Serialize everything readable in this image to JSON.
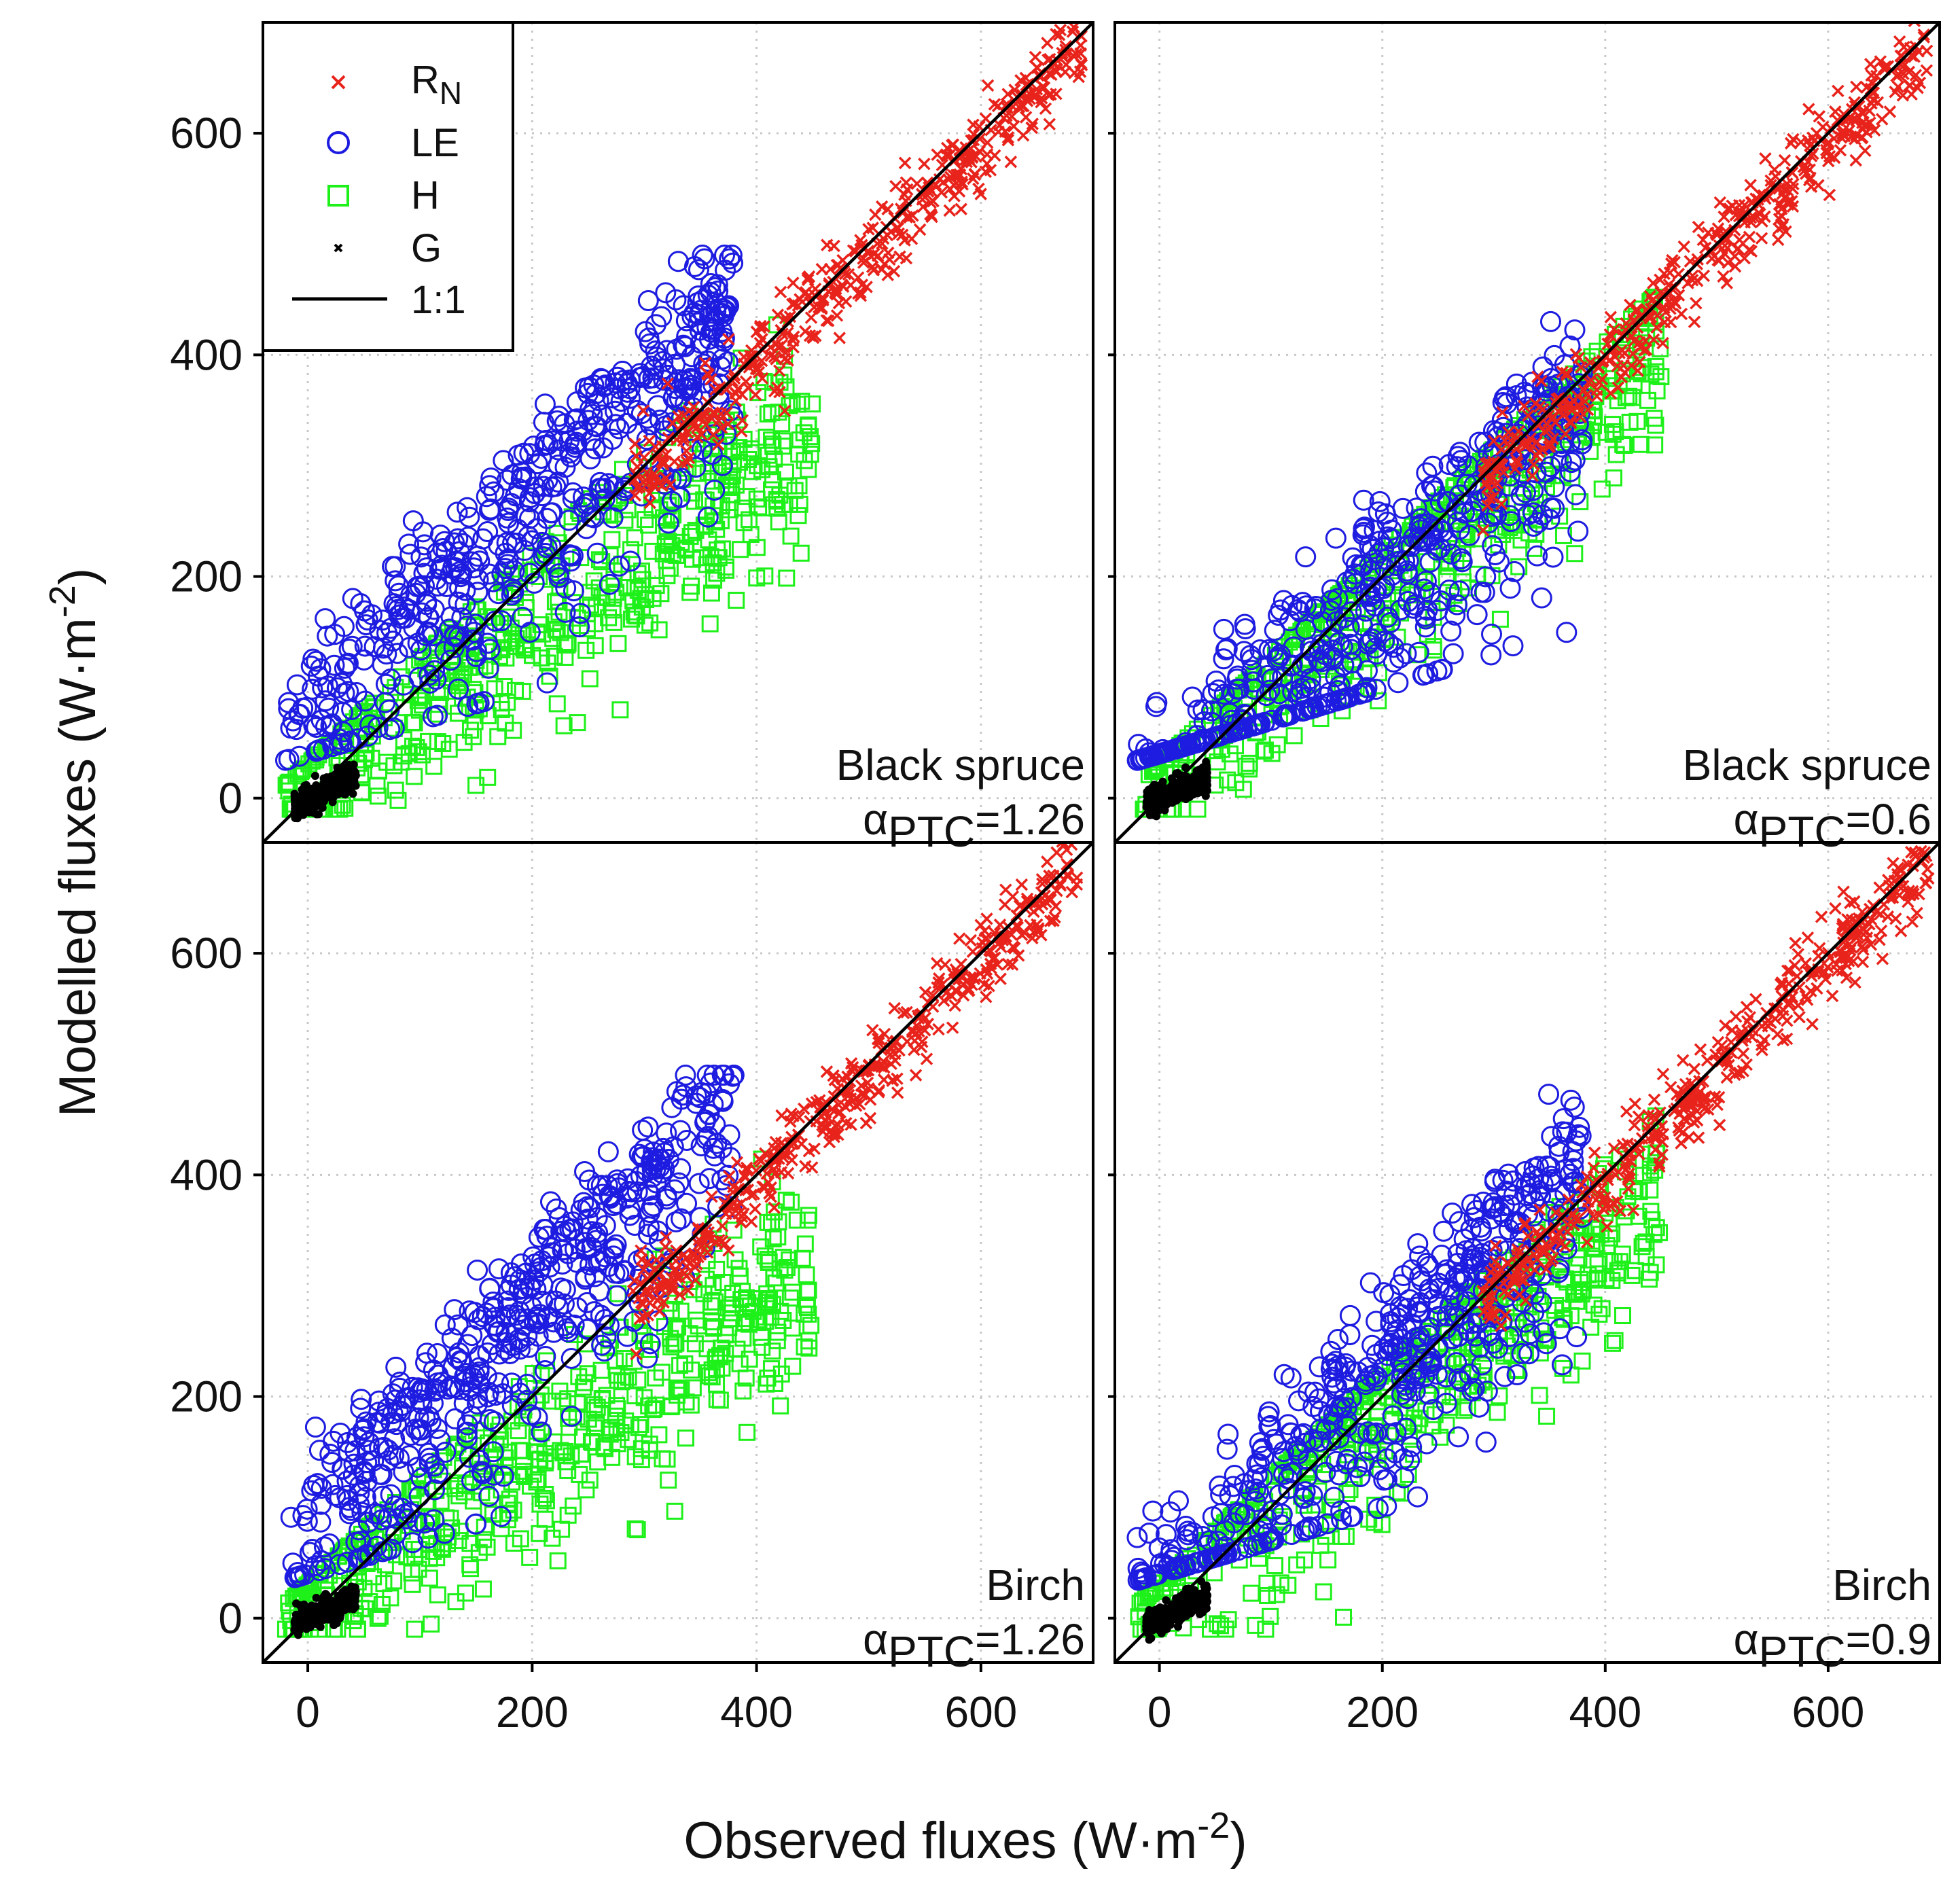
{
  "chart_data": {
    "type": "scatter",
    "layout": "2x2 panels, shared axes",
    "xlabel": "Observed fluxes (W·m-2)",
    "xlabel_main": "Observed fluxes (W·m",
    "xlabel_sup": "-2",
    "xlabel_close": ")",
    "ylabel": "Modelled fluxes (W·m-2)",
    "ylabel_main": "Modelled fluxes (W·m",
    "ylabel_sup": "-2",
    "ylabel_close": ")",
    "xlim": [
      -40,
      700
    ],
    "ylim": [
      -40,
      700
    ],
    "xticks": [
      0,
      200,
      400,
      600
    ],
    "yticks": [
      0,
      200,
      400,
      600
    ],
    "grid": true,
    "legend": {
      "placement": "top-left of first panel",
      "entries": [
        {
          "key": "RN",
          "label": "R",
          "sub": "N",
          "marker": "x",
          "color": "#e8231b"
        },
        {
          "key": "LE",
          "label": "LE",
          "marker": "circle",
          "color": "#1d1ce0"
        },
        {
          "key": "H",
          "label": "H",
          "marker": "square",
          "color": "#1ef01a"
        },
        {
          "key": "G",
          "label": "G",
          "marker": "dot",
          "color": "#000000"
        },
        {
          "key": "one_to_one",
          "label": "1:1",
          "marker": "line",
          "color": "#000000"
        }
      ]
    },
    "series_ranges": {
      "RN": {
        "observed": [
          280,
          700
        ],
        "modelled": [
          270,
          690
        ]
      },
      "LE": {
        "observed": [
          -20,
          460
        ],
        "modelled": [
          40,
          490
        ]
      },
      "H": {
        "observed": [
          -20,
          460
        ],
        "modelled": [
          -10,
          330
        ]
      },
      "G": {
        "observed": [
          -15,
          45
        ],
        "modelled": [
          -5,
          30
        ]
      }
    },
    "panels": [
      {
        "id": "top-left",
        "site": "Black spruce",
        "alpha_prefix": "α",
        "alpha_sub": "PTC",
        "alpha_value": "=1.26",
        "alpha": 1.26,
        "le_offset": 120,
        "le_slope": 1.0,
        "h_offset": -25,
        "h_slope": 0.7
      },
      {
        "id": "top-right",
        "site": "Black spruce",
        "alpha_prefix": "α",
        "alpha_sub": "PTC",
        "alpha_value": "=0.6",
        "alpha": 0.6,
        "le_offset": 55,
        "le_slope": 0.95,
        "h_offset": -10,
        "h_slope": 0.82
      },
      {
        "id": "bottom-left",
        "site": "Birch",
        "alpha_prefix": "α",
        "alpha_sub": "PTC",
        "alpha_value": "=1.26",
        "alpha": 1.26,
        "le_offset": 125,
        "le_slope": 1.05,
        "h_offset": -25,
        "h_slope": 0.65
      },
      {
        "id": "bottom-right",
        "site": "Birch",
        "alpha_prefix": "α",
        "alpha_sub": "PTC",
        "alpha_value": "=0.9",
        "alpha": 0.9,
        "le_offset": 80,
        "le_slope": 1.0,
        "h_offset": -15,
        "h_slope": 0.78
      }
    ]
  }
}
